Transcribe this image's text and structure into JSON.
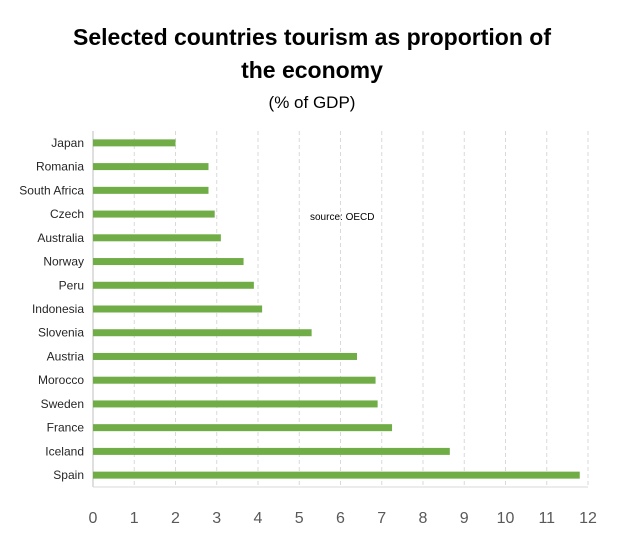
{
  "chart_data": {
    "type": "bar",
    "orientation": "horizontal",
    "title": "Selected countries tourism as proportion of the economy",
    "title_lines": [
      "Selected countries tourism as proportion of",
      "the economy"
    ],
    "subtitle": "(% of GDP)",
    "annotation": "source: OECD",
    "categories": [
      "Japan",
      "Romania",
      "South Africa",
      "Czech",
      "Australia",
      "Norway",
      "Peru",
      "Indonesia",
      "Slovenia",
      "Austria",
      "Morocco",
      "Sweden",
      "France",
      "Iceland",
      "Spain"
    ],
    "values": [
      2.0,
      2.8,
      2.8,
      2.95,
      3.1,
      3.65,
      3.9,
      4.1,
      5.3,
      6.4,
      6.85,
      6.9,
      7.25,
      8.65,
      11.8
    ],
    "xlim": [
      0,
      12
    ],
    "xticks": [
      "0",
      "1",
      "2",
      "3",
      "4",
      "5",
      "6",
      "7",
      "8",
      "9",
      "10",
      "11",
      "12"
    ],
    "grid": true,
    "legend": "none",
    "bar_color": "#70ad47"
  }
}
